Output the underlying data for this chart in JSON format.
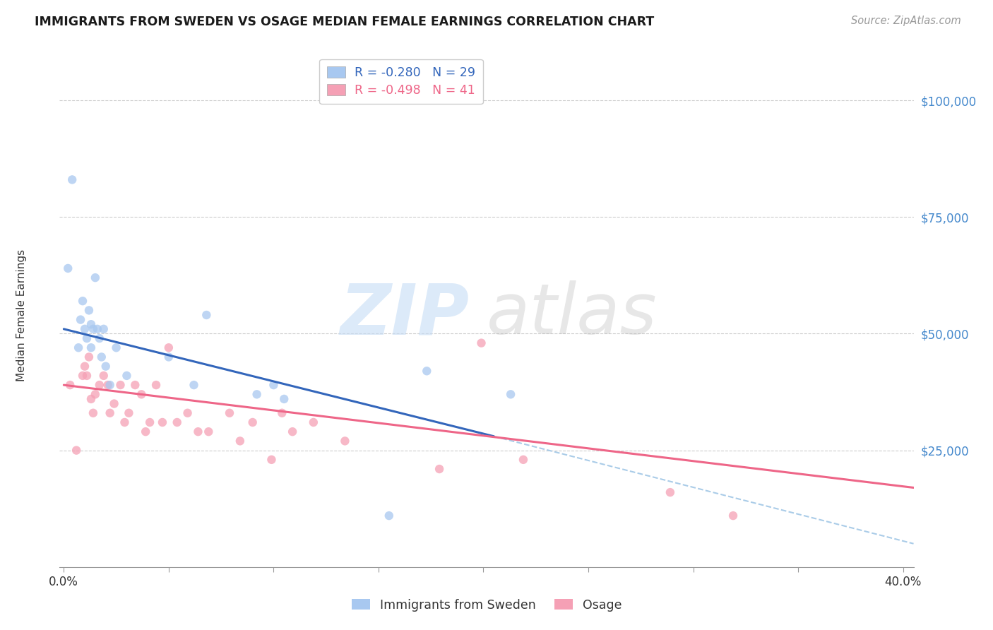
{
  "title": "IMMIGRANTS FROM SWEDEN VS OSAGE MEDIAN FEMALE EARNINGS CORRELATION CHART",
  "source": "Source: ZipAtlas.com",
  "ylabel": "Median Female Earnings",
  "ylim": [
    0,
    108000
  ],
  "xlim": [
    -0.002,
    0.405
  ],
  "yticks": [
    25000,
    50000,
    75000,
    100000
  ],
  "ytick_labels": [
    "$25,000",
    "$50,000",
    "$75,000",
    "$100,000"
  ],
  "xticks": [
    0.0,
    0.05,
    0.1,
    0.15,
    0.2,
    0.25,
    0.3,
    0.35,
    0.4
  ],
  "blue_R": -0.28,
  "blue_N": 29,
  "pink_R": -0.498,
  "pink_N": 41,
  "blue_color": "#A8C8F0",
  "pink_color": "#F5A0B5",
  "blue_line_color": "#3366BB",
  "pink_line_color": "#EE6688",
  "dashed_line_color": "#AACCE8",
  "title_color": "#1a1a1a",
  "right_label_color": "#4488CC",
  "legend_label1": "Immigrants from Sweden",
  "legend_label2": "Osage",
  "blue_scatter_x": [
    0.002,
    0.004,
    0.007,
    0.008,
    0.009,
    0.01,
    0.011,
    0.012,
    0.013,
    0.013,
    0.014,
    0.015,
    0.016,
    0.017,
    0.018,
    0.019,
    0.02,
    0.022,
    0.025,
    0.03,
    0.05,
    0.062,
    0.068,
    0.092,
    0.1,
    0.105,
    0.155,
    0.173,
    0.213
  ],
  "blue_scatter_y": [
    64000,
    83000,
    47000,
    53000,
    57000,
    51000,
    49000,
    55000,
    52000,
    47000,
    51000,
    62000,
    51000,
    49000,
    45000,
    51000,
    43000,
    39000,
    47000,
    41000,
    45000,
    39000,
    54000,
    37000,
    39000,
    36000,
    11000,
    42000,
    37000
  ],
  "pink_scatter_x": [
    0.003,
    0.006,
    0.009,
    0.01,
    0.011,
    0.012,
    0.013,
    0.014,
    0.015,
    0.017,
    0.019,
    0.021,
    0.022,
    0.024,
    0.027,
    0.029,
    0.031,
    0.034,
    0.037,
    0.039,
    0.041,
    0.044,
    0.047,
    0.05,
    0.054,
    0.059,
    0.064,
    0.069,
    0.079,
    0.084,
    0.09,
    0.099,
    0.104,
    0.109,
    0.119,
    0.134,
    0.179,
    0.199,
    0.219,
    0.289,
    0.319
  ],
  "pink_scatter_y": [
    39000,
    25000,
    41000,
    43000,
    41000,
    45000,
    36000,
    33000,
    37000,
    39000,
    41000,
    39000,
    33000,
    35000,
    39000,
    31000,
    33000,
    39000,
    37000,
    29000,
    31000,
    39000,
    31000,
    47000,
    31000,
    33000,
    29000,
    29000,
    33000,
    27000,
    31000,
    23000,
    33000,
    29000,
    31000,
    27000,
    21000,
    48000,
    23000,
    16000,
    11000
  ],
  "blue_trendline_x": [
    0.0,
    0.205
  ],
  "blue_trendline_y": [
    51000,
    28000
  ],
  "pink_trendline_x": [
    0.0,
    0.405
  ],
  "pink_trendline_y": [
    39000,
    17000
  ],
  "dashed_trendline_x": [
    0.205,
    0.405
  ],
  "dashed_trendline_y": [
    28000,
    5000
  ]
}
